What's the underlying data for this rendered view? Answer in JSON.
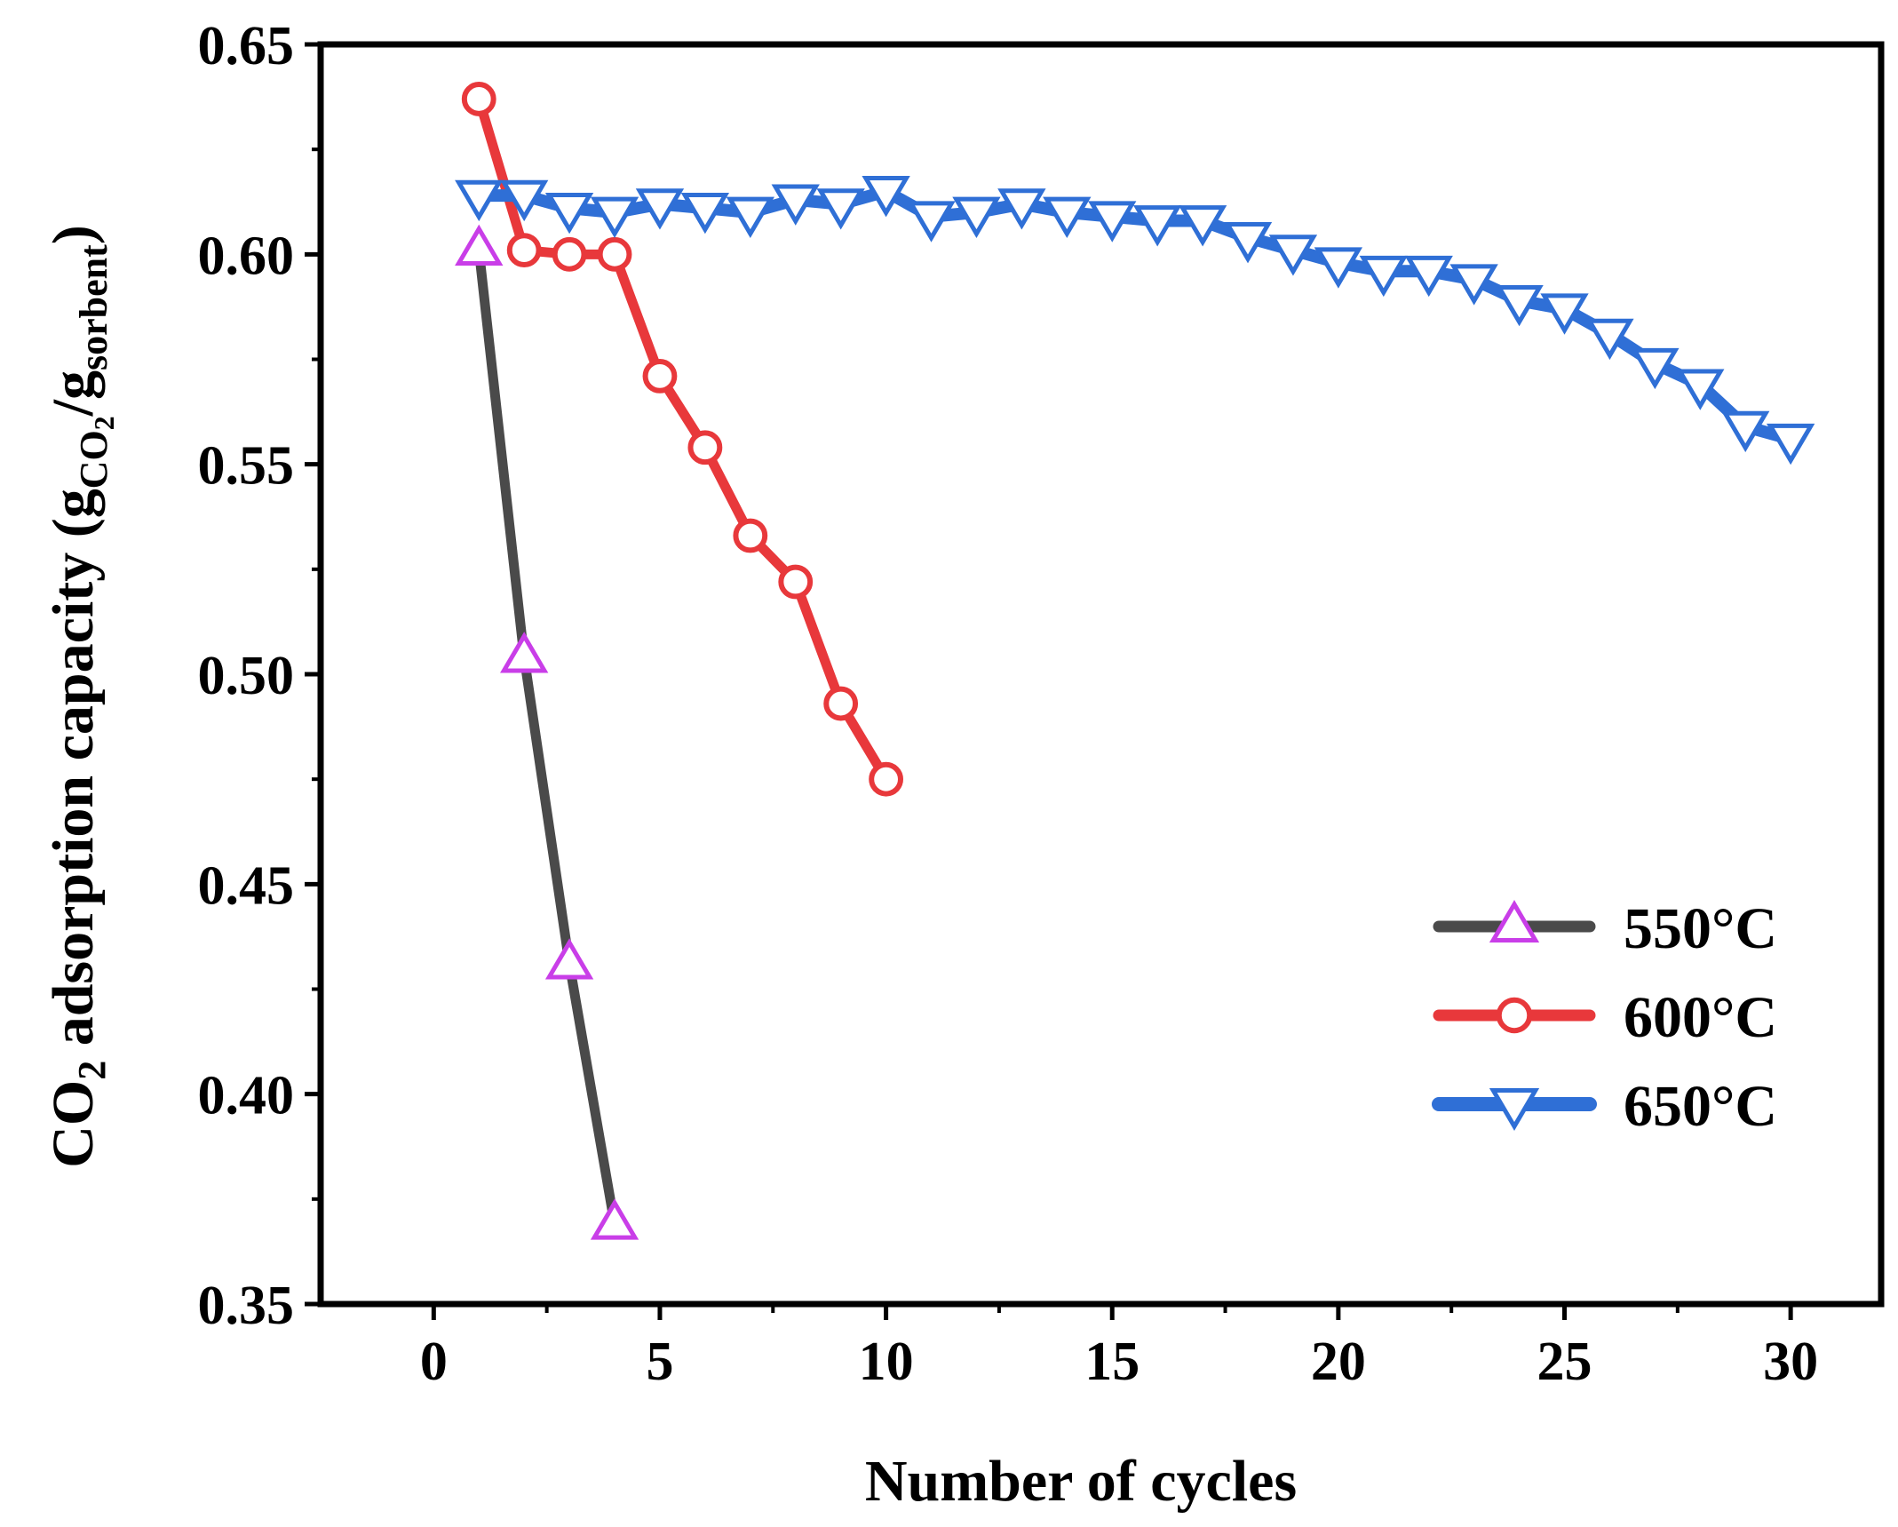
{
  "chart_data": {
    "type": "line",
    "title": "",
    "xlabel": "Number of cycles",
    "ylabel": {
      "main": "CO",
      "sub1": "2",
      "rest": " adsorption capacity (g",
      "sub_co2": "CO",
      "sub_co2_sub": "2",
      "slash": "/g",
      "sub_sorbent": "sorbent",
      "close": ")"
    },
    "xlim": [
      -2.5,
      32
    ],
    "ylim": [
      0.35,
      0.65
    ],
    "xticks": [
      0,
      5,
      10,
      15,
      20,
      25,
      30
    ],
    "xtick_labels": [
      "0",
      "5",
      "10",
      "15",
      "20",
      "25",
      "30"
    ],
    "yticks": [
      0.35,
      0.4,
      0.45,
      0.5,
      0.55,
      0.6,
      0.65
    ],
    "ytick_labels": [
      "0.35",
      "0.40",
      "0.45",
      "0.50",
      "0.55",
      "0.60",
      "0.65"
    ],
    "legend_position": "lower-right",
    "series": [
      {
        "name": "550°C",
        "line_color": "#4a4a4a",
        "marker": "triangle-up",
        "marker_color": "#c93ee8",
        "x": [
          1,
          2,
          3,
          4
        ],
        "y": [
          0.601,
          0.504,
          0.431,
          0.369
        ]
      },
      {
        "name": "600°C",
        "line_color": "#e8383b",
        "marker": "circle",
        "marker_color": "#e8383b",
        "x": [
          1,
          2,
          3,
          4,
          5,
          6,
          7,
          8,
          9,
          10
        ],
        "y": [
          0.637,
          0.601,
          0.6,
          0.6,
          0.571,
          0.554,
          0.533,
          0.522,
          0.493,
          0.475
        ]
      },
      {
        "name": "650°C",
        "line_color": "#2f6fd6",
        "marker": "triangle-down",
        "marker_color": "#2f6fd6",
        "x": [
          1,
          2,
          3,
          4,
          5,
          6,
          7,
          8,
          9,
          10,
          11,
          12,
          13,
          14,
          15,
          16,
          17,
          18,
          19,
          20,
          21,
          22,
          23,
          24,
          25,
          26,
          27,
          28,
          29,
          30
        ],
        "y": [
          0.614,
          0.614,
          0.611,
          0.61,
          0.612,
          0.611,
          0.61,
          0.613,
          0.612,
          0.615,
          0.609,
          0.61,
          0.612,
          0.61,
          0.609,
          0.608,
          0.608,
          0.604,
          0.601,
          0.598,
          0.596,
          0.596,
          0.594,
          0.589,
          0.587,
          0.581,
          0.574,
          0.569,
          0.559,
          0.556
        ]
      }
    ]
  }
}
